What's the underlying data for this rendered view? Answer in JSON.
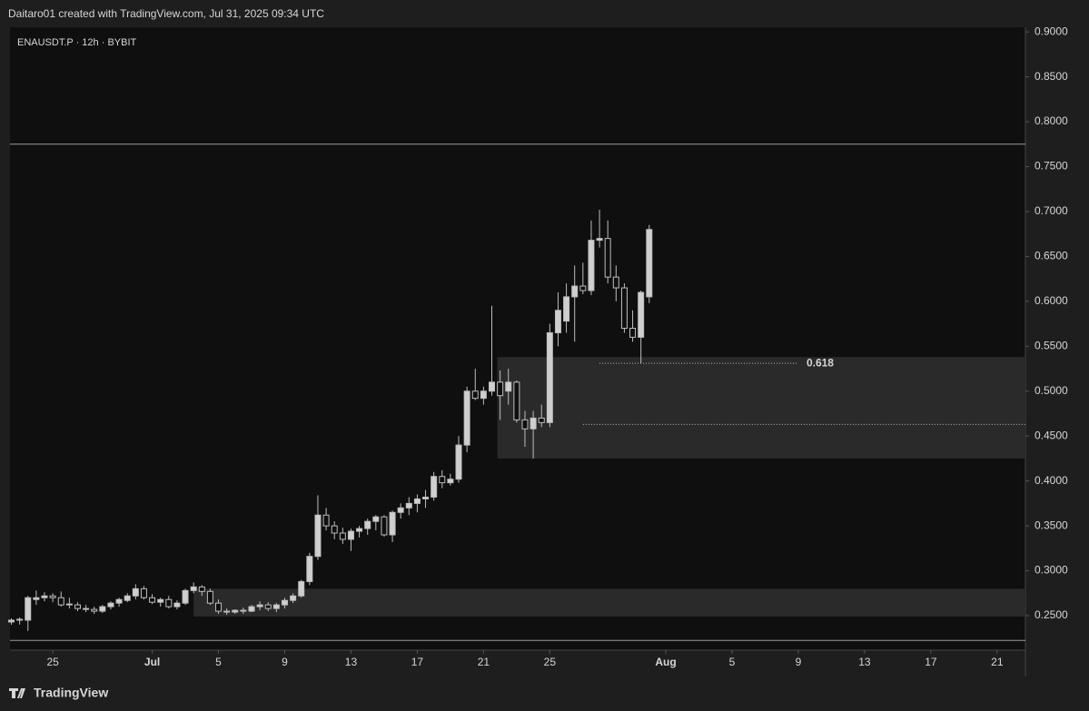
{
  "header": "Daitaro01 created with TradingView.com, Jul 31, 2025 09:34 UTC",
  "footer": "TradingView",
  "chart_data": {
    "type": "candlestick",
    "title": "ENAUSDT.P · 12h · BYBIT",
    "x": [
      "2025-06-22T12:00",
      "2025-06-23T00:00",
      "2025-06-23T12:00",
      "2025-06-24T00:00",
      "2025-06-24T12:00",
      "2025-06-25T00:00",
      "2025-06-25T12:00",
      "2025-06-26T00:00",
      "2025-06-26T12:00",
      "2025-06-27T00:00",
      "2025-06-27T12:00",
      "2025-06-28T00:00",
      "2025-06-28T12:00",
      "2025-06-29T00:00",
      "2025-06-29T12:00",
      "2025-06-30T00:00",
      "2025-06-30T12:00",
      "2025-07-01T00:00",
      "2025-07-01T12:00",
      "2025-07-02T00:00",
      "2025-07-02T12:00",
      "2025-07-03T00:00",
      "2025-07-03T12:00",
      "2025-07-04T00:00",
      "2025-07-04T12:00",
      "2025-07-05T00:00",
      "2025-07-05T12:00",
      "2025-07-06T00:00",
      "2025-07-06T12:00",
      "2025-07-07T00:00",
      "2025-07-07T12:00",
      "2025-07-08T00:00",
      "2025-07-08T12:00",
      "2025-07-09T00:00",
      "2025-07-09T12:00",
      "2025-07-10T00:00",
      "2025-07-10T12:00",
      "2025-07-11T00:00",
      "2025-07-11T12:00",
      "2025-07-12T00:00",
      "2025-07-12T12:00",
      "2025-07-13T00:00",
      "2025-07-13T12:00",
      "2025-07-14T00:00",
      "2025-07-14T12:00",
      "2025-07-15T00:00",
      "2025-07-15T12:00",
      "2025-07-16T00:00",
      "2025-07-16T12:00",
      "2025-07-17T00:00",
      "2025-07-17T12:00",
      "2025-07-18T00:00",
      "2025-07-18T12:00",
      "2025-07-19T00:00",
      "2025-07-19T12:00",
      "2025-07-20T00:00",
      "2025-07-20T12:00",
      "2025-07-21T00:00",
      "2025-07-21T12:00",
      "2025-07-22T00:00",
      "2025-07-22T12:00",
      "2025-07-23T00:00",
      "2025-07-23T12:00",
      "2025-07-24T00:00",
      "2025-07-24T12:00",
      "2025-07-25T00:00",
      "2025-07-25T12:00",
      "2025-07-26T00:00",
      "2025-07-26T12:00",
      "2025-07-27T00:00",
      "2025-07-27T12:00",
      "2025-07-28T00:00",
      "2025-07-28T12:00",
      "2025-07-29T00:00",
      "2025-07-29T12:00",
      "2025-07-30T00:00",
      "2025-07-30T12:00",
      "2025-07-31T00:00"
    ],
    "open": [
      0.243,
      0.245,
      0.245,
      0.268,
      0.27,
      0.272,
      0.27,
      0.262,
      0.262,
      0.258,
      0.257,
      0.255,
      0.26,
      0.264,
      0.267,
      0.272,
      0.28,
      0.27,
      0.265,
      0.268,
      0.26,
      0.264,
      0.278,
      0.282,
      0.277,
      0.264,
      0.255,
      0.254,
      0.256,
      0.255,
      0.26,
      0.262,
      0.258,
      0.262,
      0.267,
      0.272,
      0.288,
      0.316,
      0.362,
      0.35,
      0.342,
      0.335,
      0.344,
      0.347,
      0.355,
      0.36,
      0.34,
      0.365,
      0.37,
      0.375,
      0.38,
      0.382,
      0.405,
      0.398,
      0.402,
      0.44,
      0.5,
      0.492,
      0.5,
      0.51,
      0.5,
      0.51,
      0.468,
      0.458,
      0.47,
      0.465,
      0.565,
      0.578,
      0.605,
      0.617,
      0.612,
      0.668,
      0.67,
      0.627,
      0.615,
      0.57,
      0.56,
      0.605
    ],
    "high": [
      0.247,
      0.248,
      0.272,
      0.278,
      0.276,
      0.275,
      0.277,
      0.27,
      0.265,
      0.262,
      0.26,
      0.262,
      0.266,
      0.27,
      0.275,
      0.285,
      0.283,
      0.274,
      0.27,
      0.272,
      0.267,
      0.28,
      0.287,
      0.284,
      0.28,
      0.268,
      0.258,
      0.257,
      0.259,
      0.262,
      0.266,
      0.265,
      0.264,
      0.27,
      0.275,
      0.29,
      0.32,
      0.384,
      0.37,
      0.355,
      0.348,
      0.347,
      0.35,
      0.358,
      0.362,
      0.362,
      0.367,
      0.375,
      0.382,
      0.385,
      0.39,
      0.41,
      0.412,
      0.408,
      0.45,
      0.505,
      0.525,
      0.505,
      0.595,
      0.523,
      0.525,
      0.512,
      0.478,
      0.478,
      0.485,
      0.575,
      0.61,
      0.62,
      0.64,
      0.643,
      0.69,
      0.702,
      0.69,
      0.64,
      0.62,
      0.59,
      0.612,
      0.685
    ],
    "low": [
      0.24,
      0.24,
      0.233,
      0.262,
      0.266,
      0.265,
      0.26,
      0.258,
      0.255,
      0.254,
      0.252,
      0.253,
      0.257,
      0.26,
      0.265,
      0.268,
      0.268,
      0.263,
      0.26,
      0.258,
      0.257,
      0.262,
      0.275,
      0.272,
      0.262,
      0.252,
      0.251,
      0.252,
      0.252,
      0.254,
      0.256,
      0.255,
      0.254,
      0.258,
      0.264,
      0.27,
      0.284,
      0.312,
      0.345,
      0.335,
      0.33,
      0.322,
      0.337,
      0.34,
      0.345,
      0.338,
      0.332,
      0.358,
      0.362,
      0.365,
      0.37,
      0.378,
      0.392,
      0.395,
      0.398,
      0.432,
      0.49,
      0.485,
      0.495,
      0.468,
      0.485,
      0.465,
      0.438,
      0.425,
      0.46,
      0.46,
      0.55,
      0.565,
      0.555,
      0.608,
      0.607,
      0.66,
      0.62,
      0.6,
      0.565,
      0.555,
      0.531,
      0.598
    ],
    "close": [
      0.245,
      0.246,
      0.27,
      0.27,
      0.272,
      0.27,
      0.262,
      0.263,
      0.258,
      0.257,
      0.255,
      0.26,
      0.264,
      0.268,
      0.272,
      0.28,
      0.27,
      0.265,
      0.268,
      0.26,
      0.264,
      0.278,
      0.282,
      0.277,
      0.264,
      0.255,
      0.254,
      0.256,
      0.255,
      0.26,
      0.262,
      0.258,
      0.262,
      0.267,
      0.272,
      0.288,
      0.316,
      0.362,
      0.35,
      0.342,
      0.335,
      0.344,
      0.347,
      0.355,
      0.36,
      0.34,
      0.365,
      0.37,
      0.375,
      0.38,
      0.382,
      0.405,
      0.398,
      0.402,
      0.44,
      0.5,
      0.492,
      0.5,
      0.51,
      0.495,
      0.51,
      0.468,
      0.458,
      0.47,
      0.465,
      0.565,
      0.59,
      0.605,
      0.617,
      0.612,
      0.668,
      0.67,
      0.627,
      0.615,
      0.57,
      0.56,
      0.61,
      0.68
    ],
    "up_color": "#cfcfcf",
    "down_color": "#0f0f0f",
    "wick_color": "#bdbdbd",
    "xlim": [
      "2025-06-22T10:00",
      "2025-08-22T17:00"
    ],
    "xticks": [
      {
        "value": "2025-06-25T00:00",
        "label": "25"
      },
      {
        "value": "2025-07-01T00:00",
        "label": "Jul"
      },
      {
        "value": "2025-07-05T00:00",
        "label": "5"
      },
      {
        "value": "2025-07-09T00:00",
        "label": "9"
      },
      {
        "value": "2025-07-13T00:00",
        "label": "13"
      },
      {
        "value": "2025-07-17T00:00",
        "label": "17"
      },
      {
        "value": "2025-07-21T00:00",
        "label": "21"
      },
      {
        "value": "2025-07-25T00:00",
        "label": "25"
      },
      {
        "value": "2025-08-01T00:00",
        "label": "Aug"
      },
      {
        "value": "2025-08-05T00:00",
        "label": "5"
      },
      {
        "value": "2025-08-09T00:00",
        "label": "9"
      },
      {
        "value": "2025-08-13T00:00",
        "label": "13"
      },
      {
        "value": "2025-08-17T00:00",
        "label": "17"
      },
      {
        "value": "2025-08-21T00:00",
        "label": "21"
      }
    ],
    "ylim": [
      0.2116,
      0.9052
    ],
    "yticks": [
      {
        "value": 0.25,
        "label": "0.2500"
      },
      {
        "value": 0.3,
        "label": "0.3000"
      },
      {
        "value": 0.35,
        "label": "0.3500"
      },
      {
        "value": 0.4,
        "label": "0.4000"
      },
      {
        "value": 0.45,
        "label": "0.4500"
      },
      {
        "value": 0.5,
        "label": "0.5000"
      },
      {
        "value": 0.55,
        "label": "0.5500"
      },
      {
        "value": 0.6,
        "label": "0.6000"
      },
      {
        "value": 0.65,
        "label": "0.6500"
      },
      {
        "value": 0.7,
        "label": "0.7000"
      },
      {
        "value": 0.75,
        "label": "0.7500"
      },
      {
        "value": 0.8,
        "label": "0.8000"
      },
      {
        "value": 0.85,
        "label": "0.8500"
      },
      {
        "value": 0.9,
        "label": "0.9000"
      }
    ],
    "hlines": [
      0.775,
      0.2225
    ],
    "zones": [
      {
        "start": "2025-07-21T20:00",
        "top": 0.538,
        "bottom": 0.425
      },
      {
        "start": "2025-07-03T12:00",
        "top": 0.28,
        "bottom": 0.249
      }
    ],
    "levels": [
      {
        "label": "0.618",
        "price": 0.531,
        "start": "2025-07-28T00:00",
        "end": "2025-08-09T00:00"
      },
      {
        "price": 0.463,
        "start": "2025-07-27T00:00"
      }
    ]
  }
}
